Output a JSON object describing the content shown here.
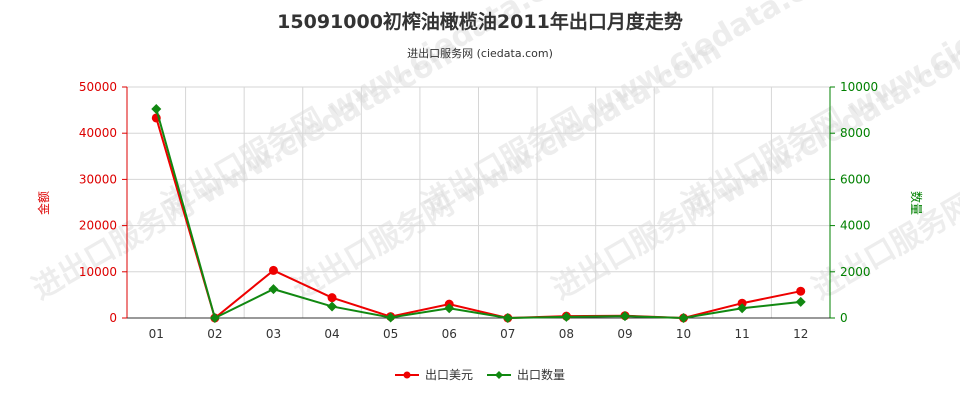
{
  "chart_data": {
    "type": "line",
    "title": "15091000初榨油橄榄油2011年出口月度走势",
    "subtitle": "进出口服务网 (ciedata.com)",
    "categories": [
      "01",
      "02",
      "03",
      "04",
      "05",
      "06",
      "07",
      "08",
      "09",
      "10",
      "11",
      "12"
    ],
    "y_left": {
      "label": "金额",
      "ylim": [
        0,
        50000
      ],
      "ticks": [
        "0",
        "10000",
        "20000",
        "30000",
        "40000",
        "50000"
      ],
      "color": "#dd0000"
    },
    "y_right": {
      "label": "数量",
      "ylim": [
        0,
        10000
      ],
      "ticks": [
        "0",
        "2000",
        "4000",
        "6000",
        "8000",
        "10000"
      ],
      "color": "#008000"
    },
    "series": [
      {
        "name": "出口美元",
        "axis": "left",
        "color": "#ee0000",
        "values": [
          43300,
          0,
          10300,
          4400,
          300,
          3000,
          0,
          400,
          500,
          0,
          3200,
          5800
        ]
      },
      {
        "name": "出口数量",
        "axis": "right",
        "color": "#118811",
        "values": [
          9050,
          0,
          1250,
          500,
          20,
          420,
          0,
          50,
          80,
          0,
          420,
          700
        ]
      }
    ],
    "watermark": "进出口服务网 www.ciedata.com",
    "grid": true,
    "legend": "bottom-center"
  }
}
